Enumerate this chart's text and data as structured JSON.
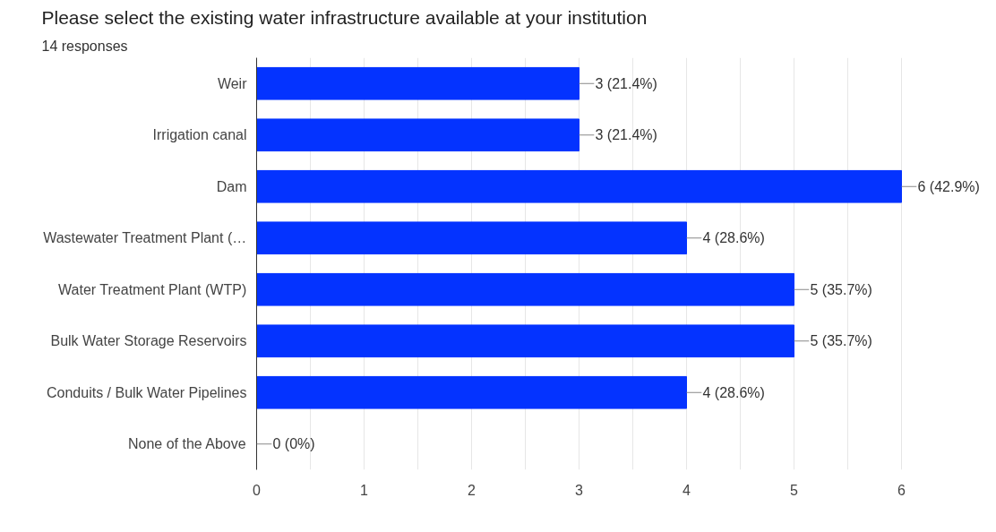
{
  "chart_data": {
    "type": "bar",
    "orientation": "horizontal",
    "title": "Please select the existing water infrastructure available at your institution",
    "subtitle": "14 responses",
    "categories": [
      "Weir",
      "Irrigation canal",
      "Dam",
      "Wastewater Treatment Plant (…",
      "Water Treatment Plant (WTP)",
      "Bulk Water Storage Reservoirs",
      "Conduits / Bulk Water Pipelines",
      "None of the Above"
    ],
    "values": [
      3,
      3,
      6,
      4,
      5,
      5,
      4,
      0
    ],
    "value_labels": [
      "3 (21.4%)",
      "3 (21.4%)",
      "6 (42.9%)",
      "4 (28.6%)",
      "5 (35.7%)",
      "5 (35.7%)",
      "4 (28.6%)",
      "0 (0%)"
    ],
    "color": "#0433ff",
    "xlim": [
      0,
      6
    ],
    "xticks": [
      0,
      {
        "value": 0.5,
        "label": null
      },
      1,
      {
        "value": 1.5,
        "label": null
      },
      2,
      {
        "value": 2.5,
        "label": null
      },
      3,
      {
        "value": 3.5,
        "label": null
      },
      4,
      {
        "value": 4.5,
        "label": null
      },
      5,
      {
        "value": 5.5,
        "label": null
      },
      6
    ],
    "grid": "x",
    "legend": false
  }
}
